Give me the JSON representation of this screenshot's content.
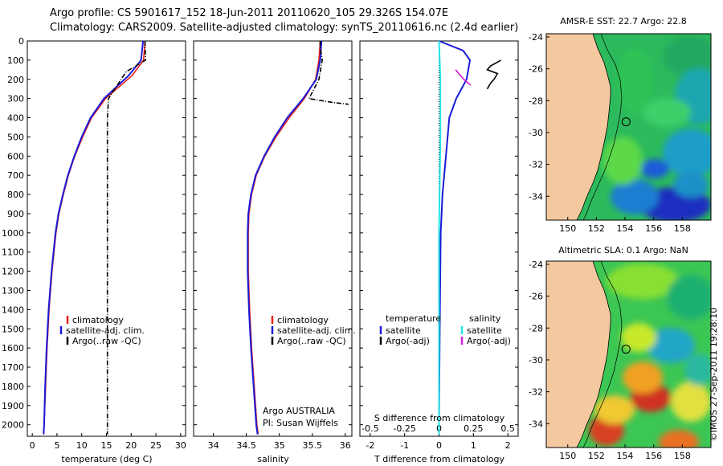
{
  "header": {
    "line1": "Argo profile: CS 5901617_152 18-Jun-2011 20110620_105 29.326S 154.07E",
    "line2": "Climatology: CARS2009. Satellite-adjusted climatology: synTS_20110616.nc (2.4d earlier)"
  },
  "colors": {
    "clim": "#e8201a",
    "sat": "#1a1ad8",
    "argo": "#000000",
    "sal_sat": "#22e4e4",
    "sal_argo": "#d020d0",
    "land": "#f5c9a0",
    "sea": "#2cba5c"
  },
  "chart_data": [
    {
      "type": "line",
      "id": "temperature",
      "xlabel": "temperature (deg C)",
      "xlim": [
        -1,
        31
      ],
      "ylim": [
        2060,
        0
      ],
      "xticks": [
        "0",
        "5",
        "10",
        "15",
        "20",
        "25",
        "30"
      ],
      "yticks": [
        "0",
        "100",
        "200",
        "300",
        "400",
        "500",
        "600",
        "700",
        "800",
        "900",
        "1000",
        "1100",
        "1200",
        "1300",
        "1400",
        "1500",
        "1600",
        "1700",
        "1800",
        "1900",
        "2000"
      ],
      "legend": [
        "climatology",
        "satellite-adj. clim.",
        "Argo(..raw -QC)"
      ],
      "series": [
        {
          "name": "climatology",
          "color": "#e8201a",
          "depth": [
            0,
            100,
            180,
            300,
            400,
            500,
            600,
            700,
            800,
            900,
            1000,
            1200,
            1400,
            1600,
            1800,
            2000,
            2050
          ],
          "values": [
            22.8,
            22.5,
            20.2,
            14.8,
            12.0,
            10.2,
            8.6,
            7.3,
            6.3,
            5.4,
            4.8,
            4.0,
            3.4,
            3.0,
            2.7,
            2.4,
            2.3
          ]
        },
        {
          "name": "satellite-adj. clim.",
          "color": "#1a1ad8",
          "depth": [
            0,
            100,
            180,
            300,
            400,
            500,
            600,
            700,
            800,
            900,
            1000,
            1200,
            1400,
            1600,
            1800,
            2000,
            2050
          ],
          "values": [
            22.4,
            22.0,
            19.5,
            14.5,
            11.8,
            10.0,
            8.5,
            7.2,
            6.2,
            5.3,
            4.7,
            3.9,
            3.3,
            2.9,
            2.6,
            2.4,
            2.3
          ]
        },
        {
          "name": "Argo(..raw -QC)",
          "color": "#000000",
          "dashed": true,
          "depth": [
            0,
            100,
            160,
            300,
            400,
            800,
            1200,
            1600,
            2000,
            2050
          ],
          "values": [
            22.8,
            22.9,
            19.0,
            15.4,
            15.2,
            15.2,
            15.2,
            15.2,
            15.2,
            15.2
          ]
        }
      ]
    },
    {
      "type": "line",
      "id": "salinity",
      "xlabel": "salinity",
      "xlim": [
        33.7,
        36.1
      ],
      "ylim": [
        2060,
        0
      ],
      "xticks": [
        "34",
        "34.5",
        "35",
        "35.5",
        "36"
      ],
      "legend": [
        "climatology",
        "satellite-adj. clim.",
        "Argo(..raw -QC)"
      ],
      "annotations": [
        "Argo AUSTRALIA",
        "PI: Susan Wijffels"
      ],
      "series": [
        {
          "name": "climatology",
          "color": "#e8201a",
          "depth": [
            0,
            100,
            200,
            300,
            400,
            500,
            600,
            700,
            800,
            900,
            1000,
            1200,
            1400,
            1600,
            1800,
            2000,
            2050
          ],
          "values": [
            35.62,
            35.6,
            35.55,
            35.38,
            35.15,
            34.95,
            34.78,
            34.65,
            34.58,
            34.54,
            34.53,
            34.53,
            34.55,
            34.58,
            34.62,
            34.66,
            34.68
          ]
        },
        {
          "name": "satellite-adj. clim.",
          "color": "#1a1ad8",
          "depth": [
            0,
            100,
            200,
            300,
            400,
            500,
            600,
            700,
            800,
            900,
            1000,
            1200,
            1400,
            1600,
            1800,
            2000,
            2050
          ],
          "values": [
            35.64,
            35.62,
            35.56,
            35.36,
            35.12,
            34.93,
            34.77,
            34.64,
            34.57,
            34.53,
            34.52,
            34.52,
            34.54,
            34.57,
            34.61,
            34.65,
            34.67
          ]
        },
        {
          "name": "Argo(..raw -QC)",
          "color": "#000000",
          "dashed": true,
          "depth": [
            0,
            30,
            100,
            200,
            300,
            320,
            330
          ],
          "values": [
            35.62,
            35.62,
            35.65,
            35.6,
            35.45,
            35.8,
            36.05
          ]
        }
      ]
    },
    {
      "type": "line",
      "id": "difference",
      "xlabel": "T difference from climatology",
      "xlabel_top": "S difference from climatology",
      "xlim": [
        -2.3,
        2.3
      ],
      "ylim": [
        2060,
        0
      ],
      "xticks": [
        "-2",
        "-1",
        "0",
        "1",
        "2"
      ],
      "xticks_top": [
        "-0.5",
        "-0.25",
        "0",
        "0.25",
        "0.5"
      ],
      "legend_groups": [
        "temperature",
        "salinity"
      ],
      "legend": [
        "satellite",
        "Argo(-adj)",
        "satellite",
        "Argo(-adj)"
      ],
      "series": [
        {
          "name": "temperature satellite",
          "color": "#1a1ad8",
          "depth": [
            0,
            50,
            100,
            200,
            300,
            400,
            600,
            800,
            1000,
            1500,
            2000,
            2050
          ],
          "values": [
            0.0,
            0.7,
            0.9,
            0.8,
            0.5,
            0.3,
            0.2,
            0.1,
            0.05,
            0.02,
            0.0,
            0.0
          ]
        },
        {
          "name": "temperature Argo(-adj)",
          "color": "#000000",
          "depth": [
            100,
            110,
            130,
            150,
            170,
            200,
            220,
            250
          ],
          "values": [
            1.8,
            1.7,
            1.5,
            1.4,
            1.7,
            1.6,
            1.5,
            1.4
          ]
        },
        {
          "name": "salinity satellite",
          "color": "#22e4e4",
          "depth": [
            0,
            200,
            500,
            1000,
            1500,
            2000,
            2050
          ],
          "values": [
            0.0,
            0.01,
            0.01,
            0.0,
            0.0,
            0.0,
            0.0
          ]
        },
        {
          "name": "salinity Argo(-adj)",
          "color": "#d020d0",
          "depth": [
            150,
            200,
            230
          ],
          "values": [
            0.12,
            0.18,
            0.23
          ]
        }
      ]
    },
    {
      "type": "heatmap",
      "id": "sst-map",
      "title": "AMSR-E SST: 22.7 Argo: 22.8",
      "xlim": [
        148.5,
        160
      ],
      "ylim": [
        -35.5,
        -23.8
      ],
      "xticks": [
        "150",
        "152",
        "154",
        "156",
        "158"
      ],
      "yticks": [
        "-24",
        "-26",
        "-28",
        "-30",
        "-32",
        "-34"
      ],
      "marker": {
        "lon": 154.07,
        "lat": -29.326
      }
    },
    {
      "type": "heatmap",
      "id": "sla-map",
      "title": "Altimetric SLA: 0.1 Argo: NaN",
      "xlim": [
        148.5,
        160
      ],
      "ylim": [
        -35.5,
        -23.8
      ],
      "xticks": [
        "150",
        "152",
        "154",
        "156",
        "158"
      ],
      "yticks": [
        "-24",
        "-26",
        "-28",
        "-30",
        "-32",
        "-34"
      ],
      "marker": {
        "lon": 154.07,
        "lat": -29.326
      }
    }
  ],
  "footer": {
    "credit": "©IMOS 27-Sep-2011 19:28:10"
  }
}
